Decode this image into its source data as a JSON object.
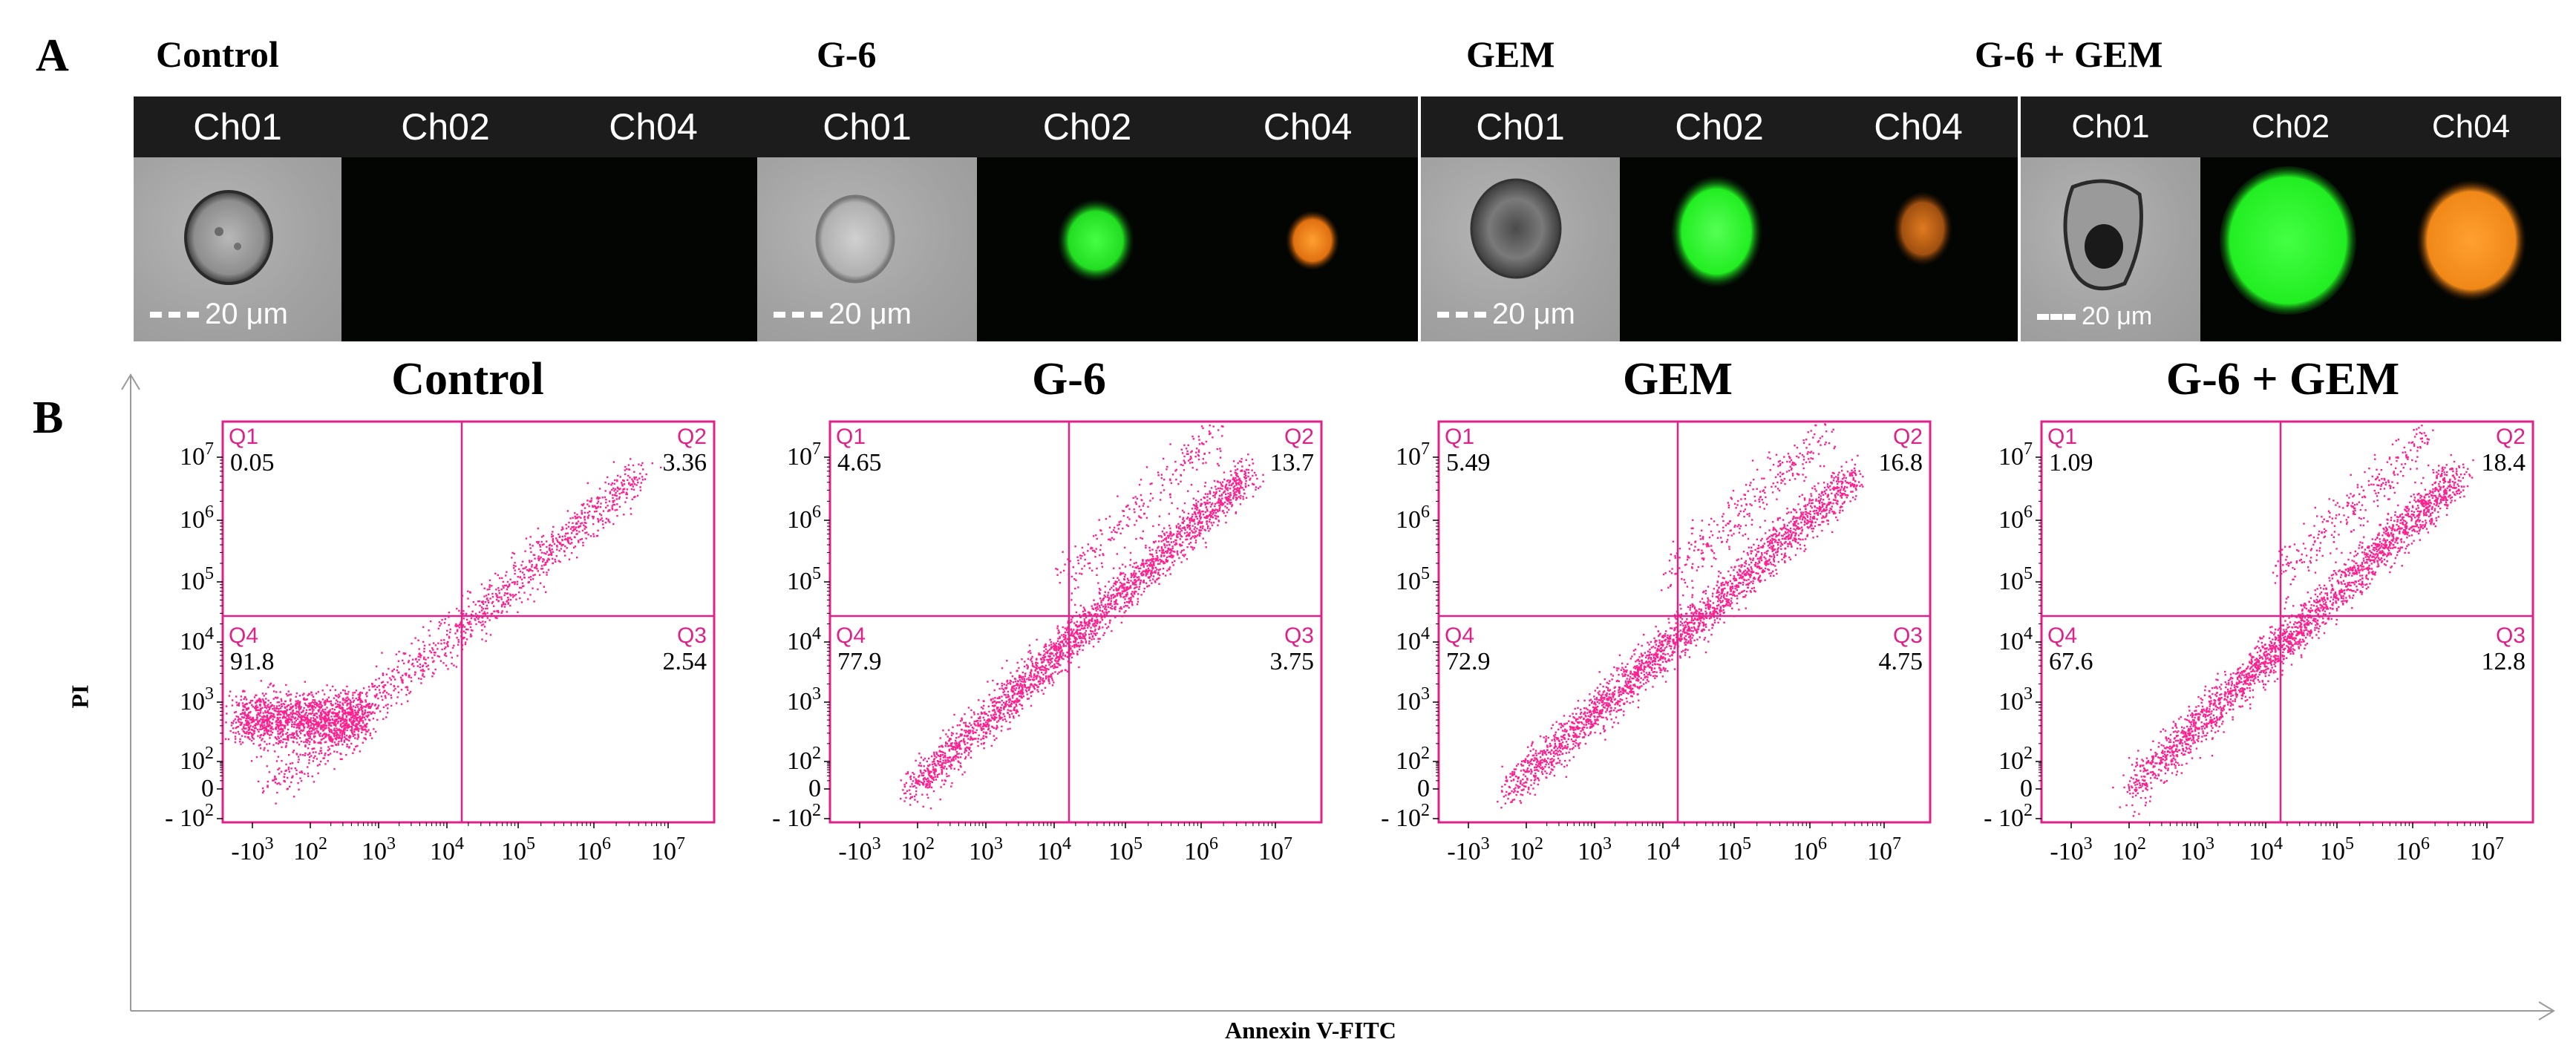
{
  "panel_a": {
    "letter": "A",
    "scale_text": "20 μm",
    "groups": [
      {
        "title": "Control",
        "channels": [
          "Ch01",
          "Ch02",
          "Ch04"
        ]
      },
      {
        "title": "G-6",
        "channels": [
          "Ch01",
          "Ch02",
          "Ch04"
        ]
      },
      {
        "title": "GEM",
        "channels": [
          "Ch01",
          "Ch02",
          "Ch04"
        ]
      },
      {
        "title": "G-6 + GEM",
        "channels": [
          "Ch01",
          "Ch02",
          "Ch04"
        ]
      }
    ],
    "colors": {
      "ch02": "#22ee22",
      "ch04": "#ff8c10",
      "header": "#1c1c1c"
    }
  },
  "panel_b": {
    "letter": "B",
    "ylabel": "PI",
    "xlabel": "Annexin V-FITC",
    "y_ticks": [
      "10^7",
      "10^6",
      "10^5",
      "10^4",
      "10^3",
      "10^2",
      "0",
      "- 10^2"
    ],
    "x_ticks": [
      "-10^3",
      "10^2",
      "10^3",
      "10^4",
      "10^5",
      "10^6",
      "10^7"
    ],
    "quadrant_labels": [
      "Q1",
      "Q2",
      "Q3",
      "Q4"
    ],
    "dot_color": "#ff1f8e",
    "gate_color": "#e0218a"
  },
  "chart_data": [
    {
      "type": "scatter",
      "title": "Control",
      "xlabel": "Annexin V-FITC",
      "ylabel": "PI",
      "quadrants": {
        "Q1": "0.05",
        "Q2": "3.36",
        "Q3": "2.54",
        "Q4": "91.8"
      }
    },
    {
      "type": "scatter",
      "title": "G-6",
      "xlabel": "Annexin V-FITC",
      "ylabel": "PI",
      "quadrants": {
        "Q1": "4.65",
        "Q2": "13.7",
        "Q3": "3.75",
        "Q4": "77.9"
      }
    },
    {
      "type": "scatter",
      "title": "GEM",
      "xlabel": "Annexin V-FITC",
      "ylabel": "PI",
      "quadrants": {
        "Q1": "5.49",
        "Q2": "16.8",
        "Q3": "4.75",
        "Q4": "72.9"
      }
    },
    {
      "type": "scatter",
      "title": "G-6 + GEM",
      "xlabel": "Annexin V-FITC",
      "ylabel": "PI",
      "quadrants": {
        "Q1": "1.09",
        "Q2": "18.4",
        "Q3": "12.8",
        "Q4": "67.6"
      }
    }
  ]
}
